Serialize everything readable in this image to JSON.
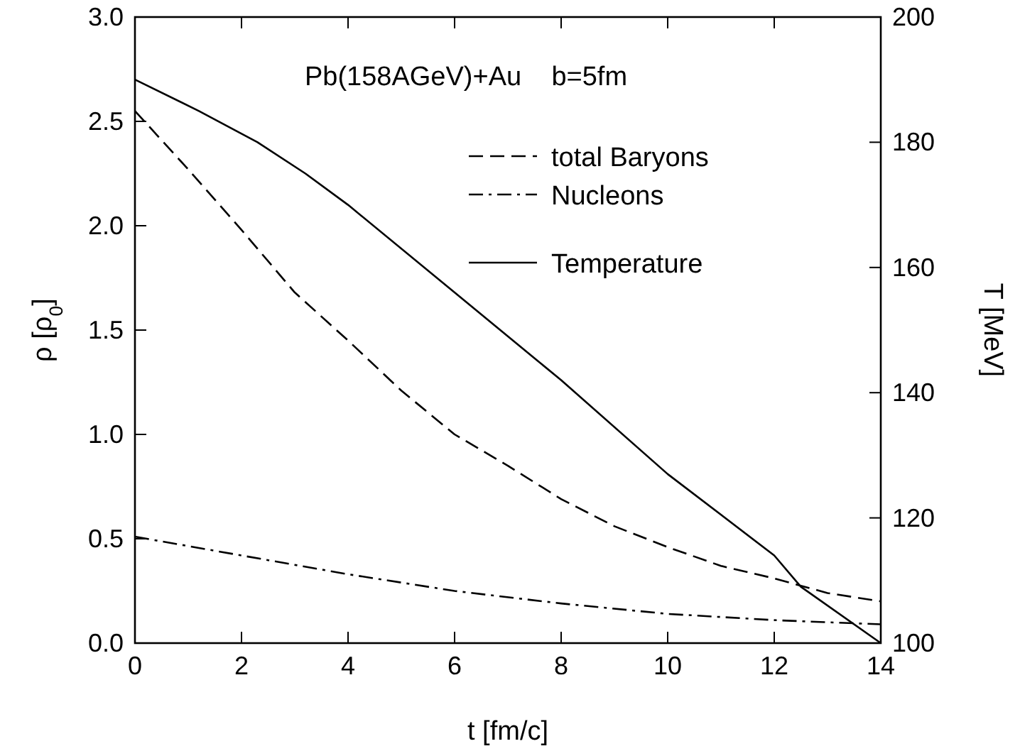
{
  "chart_data": {
    "type": "line",
    "annotations": [
      "Pb(158AGeV)+Au    b=5fm"
    ],
    "xlabel": "t [fm/c]",
    "ylabel": "ρ [ρ$_{0}$]",
    "y2label": "T [MeV]",
    "xlim": [
      0,
      14
    ],
    "xticks": [
      0,
      2,
      4,
      6,
      8,
      10,
      12,
      14
    ],
    "ylim": [
      0,
      3
    ],
    "yticks": [
      {
        "value": 0,
        "label": "0.0"
      },
      {
        "value": 0.5,
        "label": "0.5"
      },
      {
        "value": 1,
        "label": "1.0"
      },
      {
        "value": 1.5,
        "label": "1.5"
      },
      {
        "value": 2,
        "label": "2.0"
      },
      {
        "value": 2.5,
        "label": "2.5"
      },
      {
        "value": 3,
        "label": "3.0"
      }
    ],
    "y2lim": [
      100,
      200
    ],
    "y2ticks": [
      100,
      120,
      140,
      160,
      180,
      200
    ],
    "legend": "top right",
    "grid": false,
    "series": [
      {
        "name": "total Baryons",
        "color": "#000000",
        "line_style": "dashed",
        "x": [
          0,
          1,
          2,
          3,
          4,
          5,
          6,
          7,
          8,
          9,
          10,
          11,
          12,
          13,
          14
        ],
        "values": [
          2.55,
          2.27,
          1.98,
          1.68,
          1.45,
          1.21,
          1.0,
          0.85,
          0.69,
          0.56,
          0.46,
          0.37,
          0.31,
          0.24,
          0.2
        ]
      },
      {
        "name": "Nucleons",
        "color": "#000000",
        "line_style": "dashdot",
        "x": [
          0,
          2,
          4,
          6,
          8,
          10,
          12,
          14
        ],
        "values": [
          0.51,
          0.42,
          0.33,
          0.25,
          0.19,
          0.14,
          0.11,
          0.09
        ]
      },
      {
        "name": "Temperature",
        "color": "#000000",
        "line_style": "solid",
        "axis": "y2",
        "x": [
          0,
          1.2,
          2.3,
          3.2,
          4,
          6,
          8,
          10,
          12,
          12.5,
          14
        ],
        "values": [
          190,
          185,
          180,
          175,
          170,
          156,
          142,
          127,
          114,
          109,
          100
        ]
      }
    ]
  }
}
